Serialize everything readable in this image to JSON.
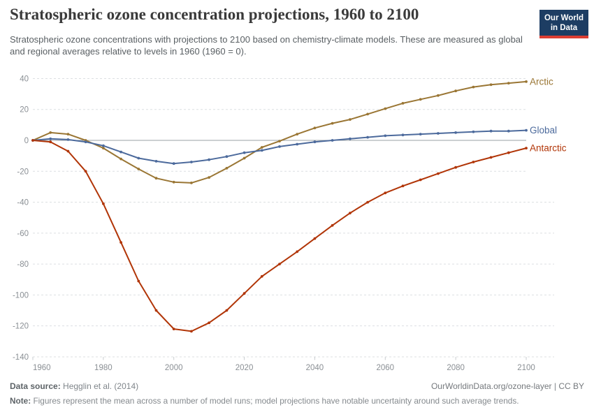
{
  "header": {
    "logo": {
      "line1": "Our World",
      "line2": "in Data",
      "bg_color": "#1d3d63",
      "accent_color": "#dc3e32"
    }
  },
  "chart_data": {
    "type": "line",
    "title": "Stratospheric ozone concentration projections, 1960 to 2100",
    "subtitle": "Stratospheric ozone concentrations with projections to 2100 based on chemistry-climate models. These are measured as global and regional averages relative to levels in 1960 (1960 = 0).",
    "x": [
      1960,
      1965,
      1970,
      1975,
      1980,
      1985,
      1990,
      1995,
      2000,
      2005,
      2010,
      2015,
      2020,
      2025,
      2030,
      2035,
      2040,
      2045,
      2050,
      2055,
      2060,
      2065,
      2070,
      2075,
      2080,
      2085,
      2090,
      2095,
      2100
    ],
    "series": [
      {
        "name": "Arctic",
        "color": "#9a7634",
        "values": [
          0,
          5,
          4,
          0,
          -5,
          -12,
          -18.5,
          -24.5,
          -27,
          -27.5,
          -24,
          -18,
          -11.5,
          -4.5,
          -0.5,
          4,
          8,
          11,
          13.5,
          17,
          20.5,
          24,
          26.5,
          29,
          32,
          34.5,
          36,
          37,
          38
        ]
      },
      {
        "name": "Global",
        "color": "#4c6a9c",
        "values": [
          0,
          1,
          0.5,
          -1,
          -3.5,
          -7.5,
          -11.5,
          -13.5,
          -15,
          -14,
          -12.5,
          -10.5,
          -8,
          -6.5,
          -4,
          -2.5,
          -1,
          0,
          1,
          2,
          3,
          3.5,
          4,
          4.5,
          5,
          5.5,
          6,
          6,
          6.5
        ]
      },
      {
        "name": "Antarctic",
        "color": "#b13507",
        "values": [
          0,
          -1,
          -7,
          -20,
          -41,
          -66,
          -91,
          -110,
          -122,
          -123.5,
          -118,
          -110,
          -99,
          -88,
          -80,
          -72,
          -63.5,
          -55,
          -47,
          -40,
          -34,
          -29.5,
          -25.5,
          -21.5,
          -17.5,
          -14,
          -11,
          -8,
          -5
        ]
      }
    ],
    "xlabel": "",
    "ylabel": "",
    "xlim": [
      1960,
      2100
    ],
    "ylim": [
      -140,
      40
    ],
    "xticks": [
      1960,
      1980,
      2000,
      2020,
      2040,
      2060,
      2080,
      2100
    ],
    "yticks": [
      40,
      20,
      0,
      -20,
      -40,
      -60,
      -80,
      -100,
      -120,
      -140
    ],
    "grid": "horizontal dashed, solid zero line",
    "legend_position": "labels at right end of each line",
    "marker": "point every 5 years"
  },
  "footer": {
    "source_label": "Data source:",
    "source_text": "Hegglin et al. (2014)",
    "link_text": "OurWorldinData.org/ozone-layer",
    "divider": "|",
    "license_text": "CC BY",
    "note_label": "Note:",
    "note_text": "Figures represent the mean across a number of model runs; model projections have notable uncertainty around such average trends."
  }
}
